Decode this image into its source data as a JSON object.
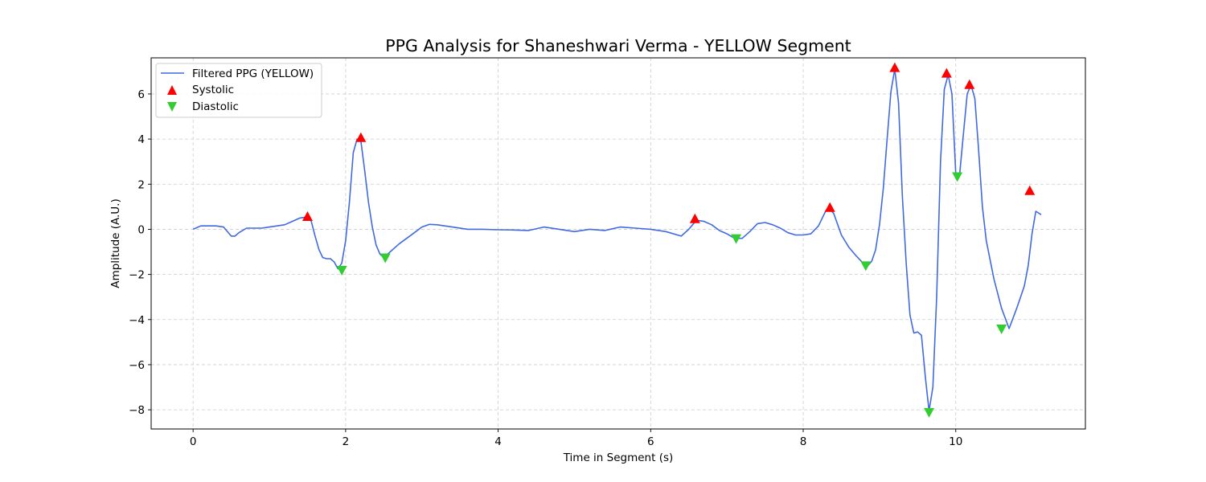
{
  "chart_data": {
    "type": "line",
    "title": "PPG Analysis for Shaneshwari Verma - YELLOW Segment",
    "xlabel": "Time in Segment (s)",
    "ylabel": "Amplitude (A.U.)",
    "xlim": [
      -0.55,
      11.7
    ],
    "ylim": [
      -8.85,
      7.6
    ],
    "xticks": [
      0,
      2,
      4,
      6,
      8,
      10
    ],
    "yticks": [
      -8,
      -6,
      -4,
      -2,
      0,
      2,
      4,
      6
    ],
    "grid": true,
    "legend_position": "top-left",
    "colors": {
      "line": "#4169e1",
      "systolic": "#ff0000",
      "diastolic": "#32cd32",
      "grid": "#cccccc"
    },
    "series": [
      {
        "name": "Filtered PPG (YELLOW)",
        "kind": "line",
        "x": [
          0,
          0.1,
          0.2,
          0.3,
          0.4,
          0.5,
          0.55,
          0.6,
          0.7,
          0.8,
          0.9,
          1.0,
          1.1,
          1.2,
          1.3,
          1.4,
          1.5,
          1.55,
          1.6,
          1.65,
          1.7,
          1.75,
          1.8,
          1.85,
          1.9,
          1.95,
          2.0,
          2.05,
          2.1,
          2.15,
          2.2,
          2.25,
          2.3,
          2.35,
          2.4,
          2.45,
          2.5,
          2.55,
          2.6,
          2.7,
          2.8,
          2.9,
          3.0,
          3.1,
          3.2,
          3.4,
          3.6,
          3.8,
          4.0,
          4.2,
          4.4,
          4.6,
          4.8,
          5.0,
          5.2,
          5.4,
          5.6,
          5.8,
          6.0,
          6.2,
          6.4,
          6.5,
          6.6,
          6.7,
          6.8,
          6.9,
          7.0,
          7.1,
          7.2,
          7.3,
          7.4,
          7.5,
          7.6,
          7.7,
          7.8,
          7.9,
          8.0,
          8.1,
          8.2,
          8.3,
          8.35,
          8.4,
          8.5,
          8.6,
          8.7,
          8.8,
          8.85,
          8.9,
          8.95,
          9.0,
          9.05,
          9.1,
          9.15,
          9.2,
          9.25,
          9.3,
          9.35,
          9.4,
          9.45,
          9.5,
          9.55,
          9.6,
          9.65,
          9.7,
          9.75,
          9.8,
          9.85,
          9.9,
          9.95,
          10.0,
          10.05,
          10.1,
          10.15,
          10.2,
          10.25,
          10.3,
          10.35,
          10.4,
          10.5,
          10.6,
          10.7,
          10.8,
          10.85,
          10.9,
          10.95,
          11.0,
          11.05,
          11.12
        ],
        "y": [
          0,
          0.15,
          0.15,
          0.15,
          0.1,
          -0.3,
          -0.3,
          -0.15,
          0.05,
          0.05,
          0.05,
          0.1,
          0.15,
          0.2,
          0.35,
          0.5,
          0.55,
          0.35,
          -0.3,
          -0.9,
          -1.25,
          -1.3,
          -1.3,
          -1.45,
          -1.75,
          -1.5,
          -0.5,
          1.2,
          3.4,
          4.0,
          3.9,
          2.6,
          1.2,
          0.1,
          -0.7,
          -1.1,
          -1.25,
          -1.1,
          -0.95,
          -0.65,
          -0.4,
          -0.15,
          0.1,
          0.22,
          0.2,
          0.1,
          0,
          0,
          -0.02,
          -0.03,
          -0.05,
          0.1,
          0,
          -0.1,
          0,
          -0.05,
          0.1,
          0.05,
          0,
          -0.1,
          -0.3,
          0,
          0.4,
          0.35,
          0.2,
          -0.05,
          -0.2,
          -0.4,
          -0.4,
          -0.1,
          0.25,
          0.3,
          0.2,
          0.05,
          -0.15,
          -0.25,
          -0.25,
          -0.2,
          0.15,
          0.85,
          0.9,
          0.7,
          -0.25,
          -0.8,
          -1.2,
          -1.55,
          -1.6,
          -1.4,
          -0.9,
          0.2,
          1.8,
          4.0,
          6.1,
          7.1,
          5.6,
          1.5,
          -1.5,
          -3.8,
          -4.6,
          -4.55,
          -4.7,
          -6.5,
          -8.05,
          -7.0,
          -3.0,
          3.0,
          6.2,
          6.85,
          6.0,
          2.5,
          2.4,
          4.2,
          6.0,
          6.4,
          5.8,
          3.5,
          1.0,
          -0.5,
          -2.2,
          -3.5,
          -4.4,
          -3.5,
          -3.0,
          -2.5,
          -1.6,
          -0.2,
          0.8,
          0.65
        ]
      },
      {
        "name": "Systolic",
        "kind": "marker",
        "marker": "triangle-up",
        "x": [
          1.5,
          2.2,
          6.58,
          8.35,
          9.2,
          9.88,
          10.18,
          10.97
        ],
        "y": [
          0.55,
          4.05,
          0.45,
          0.95,
          7.15,
          6.9,
          6.4,
          1.7
        ]
      },
      {
        "name": "Diastolic",
        "kind": "marker",
        "marker": "triangle-down",
        "x": [
          1.95,
          2.52,
          7.12,
          8.82,
          9.65,
          10.02,
          10.6
        ],
        "y": [
          -1.8,
          -1.25,
          -0.4,
          -1.6,
          -8.1,
          2.35,
          -4.4
        ]
      }
    ]
  }
}
